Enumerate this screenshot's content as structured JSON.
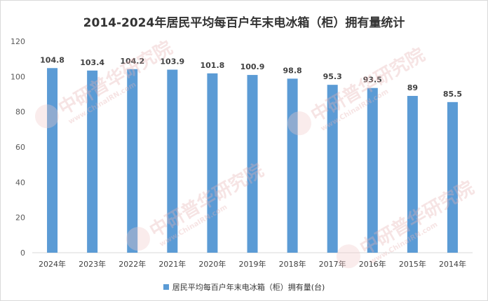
{
  "chart_data": {
    "type": "bar",
    "title": "2014-2024年居民平均每百户年末电冰箱（柜）拥有量统计",
    "categories": [
      "2024年",
      "2023年",
      "2022年",
      "2021年",
      "2020年",
      "2019年",
      "2018年",
      "2017年",
      "2016年",
      "2015年",
      "2014年"
    ],
    "series": [
      {
        "name": "居民平均每百户年末电冰箱（柜）拥有量(台)",
        "values": [
          104.8,
          103.4,
          104.2,
          103.9,
          101.8,
          100.9,
          98.8,
          95.3,
          93.5,
          89,
          85.5
        ],
        "color": "#5b9bd5"
      }
    ],
    "data_labels": [
      "104.8",
      "103.4",
      "104.2",
      "103.9",
      "101.8",
      "100.9",
      "98.8",
      "95.3",
      "93.5",
      "89",
      "85.5"
    ],
    "yticks": [
      "0",
      "20",
      "40",
      "60",
      "80",
      "100",
      "120"
    ],
    "ylim": [
      0,
      120
    ],
    "xlabel": "",
    "ylabel": "",
    "grid": false,
    "legend_position": "bottom"
  },
  "watermark": {
    "logo_text": "CIRN",
    "big_text": "中研普华研究院",
    "small_text": "www.ChinaIRN.com"
  }
}
